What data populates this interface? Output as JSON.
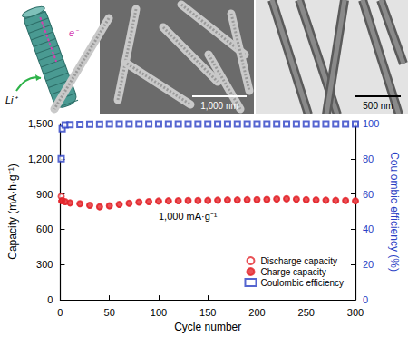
{
  "panels": {
    "schematic": {
      "labels": [
        "e⁻",
        "Li⁺"
      ]
    },
    "sem": {
      "scale_bar": "1,000 nm"
    },
    "tem": {
      "scale_bar": "500 nm"
    }
  },
  "chart_data": {
    "type": "scatter",
    "annotation": "1,000 mA·g⁻¹",
    "x_label": "Cycle number",
    "y_label": "Capacity (mA·h·g⁻¹)",
    "y2_label": "Coulombic efficiency (%)",
    "x": [
      1,
      2,
      5,
      10,
      20,
      30,
      40,
      50,
      60,
      70,
      80,
      90,
      100,
      110,
      120,
      130,
      140,
      150,
      160,
      170,
      180,
      190,
      200,
      210,
      220,
      230,
      240,
      250,
      260,
      270,
      280,
      290,
      300
    ],
    "series": [
      {
        "name": "Discharge capacity",
        "color": "#e4262c",
        "marker": "circle-open",
        "values": [
          880,
          845,
          835,
          825,
          818,
          805,
          792,
          800,
          812,
          822,
          832,
          836,
          840,
          842,
          843,
          845,
          845,
          846,
          848,
          850,
          850,
          852,
          853,
          855,
          858,
          860,
          856,
          852,
          850,
          848,
          846,
          845,
          842
        ]
      },
      {
        "name": "Charge capacity",
        "color": "#e4262c",
        "marker": "circle",
        "values": [
          840,
          842,
          832,
          823,
          816,
          803,
          790,
          798,
          810,
          820,
          830,
          834,
          838,
          840,
          841,
          843,
          843,
          844,
          846,
          848,
          848,
          850,
          851,
          853,
          856,
          858,
          854,
          850,
          848,
          846,
          844,
          843,
          840
        ]
      },
      {
        "name": "Coulombic efficiency",
        "color": "#2b3fc4",
        "marker": "square-open",
        "axis": "y2",
        "values": [
          80,
          97,
          99.2,
          99.4,
          99.5,
          99.6,
          99.6,
          99.7,
          99.7,
          99.7,
          99.7,
          99.8,
          99.8,
          99.8,
          99.8,
          99.8,
          99.8,
          99.8,
          99.8,
          99.8,
          99.8,
          99.8,
          99.8,
          99.8,
          99.8,
          99.8,
          99.8,
          99.8,
          99.8,
          99.8,
          99.8,
          99.8,
          99.8
        ]
      }
    ],
    "xlim": [
      0,
      300
    ],
    "xticks": [
      0,
      50,
      100,
      150,
      200,
      250,
      300
    ],
    "ylim": [
      0,
      1500
    ],
    "yticks": [
      0,
      300,
      600,
      900,
      {
        "value": 1200,
        "label": "1,200"
      },
      {
        "value": 1500,
        "label": "1,500"
      }
    ],
    "y2lim": [
      0,
      100
    ],
    "y2ticks": [
      0,
      20,
      40,
      60,
      80,
      100
    ],
    "grid": false,
    "legend": "lower right"
  }
}
